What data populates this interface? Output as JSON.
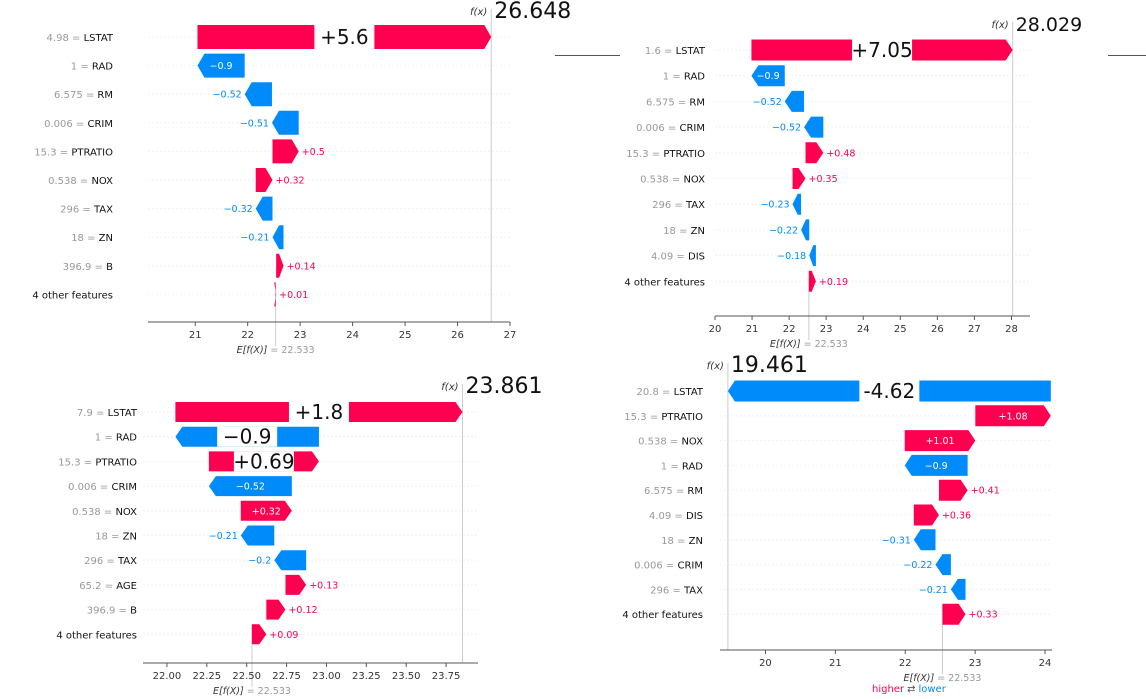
{
  "colors": {
    "positive": "#ff0051",
    "negative": "#008bfb",
    "axis": "#555555",
    "label": "#999999"
  },
  "legend": {
    "higher": "higher",
    "arrows": "⇄",
    "lower": "lower"
  },
  "chart_data": [
    {
      "type": "waterfall",
      "fx_label": "f(x)",
      "fx_value": "26.648",
      "ex_label": "E[f(X)]",
      "ex_value": "= 22.533",
      "base": 22.533,
      "xlim": [
        20.1,
        27
      ],
      "xticks": [
        21,
        22,
        23,
        24,
        25,
        26,
        27
      ],
      "features": [
        {
          "label": "4.98 = LSTAT",
          "value": 5.6,
          "text": "+5.6"
        },
        {
          "label": "1 = RAD",
          "value": -0.9,
          "text": "−0.9"
        },
        {
          "label": "6.575 = RM",
          "value": -0.52,
          "text": "−0.52"
        },
        {
          "label": "0.006 = CRIM",
          "value": -0.51,
          "text": "−0.51"
        },
        {
          "label": "15.3 = PTRATIO",
          "value": 0.5,
          "text": "+0.5"
        },
        {
          "label": "0.538 = NOX",
          "value": 0.32,
          "text": "+0.32"
        },
        {
          "label": "296 = TAX",
          "value": -0.32,
          "text": "−0.32"
        },
        {
          "label": "18 = ZN",
          "value": -0.21,
          "text": "−0.21"
        },
        {
          "label": "396.9 = B",
          "value": 0.14,
          "text": "+0.14"
        },
        {
          "label": "4 other features",
          "value": 0.01,
          "text": "+0.01"
        }
      ]
    },
    {
      "type": "waterfall",
      "fx_label": "f(x)",
      "fx_value": "28.029",
      "ex_label": "E[f(X)]",
      "ex_value": "= 22.533",
      "base": 22.533,
      "xlim": [
        20,
        28.5
      ],
      "xticks": [
        20,
        21,
        22,
        23,
        24,
        25,
        26,
        27,
        28
      ],
      "features": [
        {
          "label": "1.6 = LSTAT",
          "value": 7.05,
          "text": "+7.05"
        },
        {
          "label": "1 = RAD",
          "value": -0.9,
          "text": "−0.9"
        },
        {
          "label": "6.575 = RM",
          "value": -0.52,
          "text": "−0.52"
        },
        {
          "label": "0.006 = CRIM",
          "value": -0.52,
          "text": "−0.52"
        },
        {
          "label": "15.3 = PTRATIO",
          "value": 0.48,
          "text": "+0.48"
        },
        {
          "label": "0.538 = NOX",
          "value": 0.35,
          "text": "+0.35"
        },
        {
          "label": "296 = TAX",
          "value": -0.23,
          "text": "−0.23"
        },
        {
          "label": "18 = ZN",
          "value": -0.22,
          "text": "−0.22"
        },
        {
          "label": "4.09 = DIS",
          "value": -0.18,
          "text": "−0.18"
        },
        {
          "label": "4 other features",
          "value": 0.19,
          "text": "+0.19"
        }
      ]
    },
    {
      "type": "waterfall",
      "fx_label": "f(x)",
      "fx_value": "23.861",
      "ex_label": "E[f(X)]",
      "ex_value": "= 22.533",
      "base": 22.533,
      "xlim": [
        21.85,
        23.95
      ],
      "xticks": [
        "22.00",
        "22.25",
        "22.50",
        "22.75",
        "23.00",
        "23.25",
        "23.50",
        "23.75"
      ],
      "features": [
        {
          "label": "7.9 = LSTAT",
          "value": 1.8,
          "text": "+1.8"
        },
        {
          "label": "1 = RAD",
          "value": -0.9,
          "text": "−0.9"
        },
        {
          "label": "15.3 = PTRATIO",
          "value": 0.69,
          "text": "+0.69"
        },
        {
          "label": "0.006 = CRIM",
          "value": -0.52,
          "text": "−0.52"
        },
        {
          "label": "0.538 = NOX",
          "value": 0.32,
          "text": "+0.32"
        },
        {
          "label": "18 = ZN",
          "value": -0.21,
          "text": "−0.21"
        },
        {
          "label": "296 = TAX",
          "value": -0.2,
          "text": "−0.2"
        },
        {
          "label": "65.2 = AGE",
          "value": 0.13,
          "text": "+0.13"
        },
        {
          "label": "396.9 = B",
          "value": 0.12,
          "text": "+0.12"
        },
        {
          "label": "4 other features",
          "value": 0.09,
          "text": "+0.09"
        }
      ]
    },
    {
      "type": "waterfall",
      "fx_label": "f(x)",
      "fx_value": "19.461",
      "ex_label": "E[f(X)]",
      "ex_value": "= 22.533",
      "base": 22.533,
      "xlim": [
        19.35,
        24.1
      ],
      "xticks": [
        20,
        21,
        22,
        23,
        24
      ],
      "features": [
        {
          "label": "20.8 = LSTAT",
          "value": -4.62,
          "text": "-4.62"
        },
        {
          "label": "15.3 = PTRATIO",
          "value": 1.08,
          "text": "+1.08"
        },
        {
          "label": "0.538 = NOX",
          "value": 1.01,
          "text": "+1.01"
        },
        {
          "label": "1 = RAD",
          "value": -0.9,
          "text": "−0.9"
        },
        {
          "label": "6.575 = RM",
          "value": 0.41,
          "text": "+0.41"
        },
        {
          "label": "4.09 = DIS",
          "value": 0.36,
          "text": "+0.36"
        },
        {
          "label": "18 = ZN",
          "value": -0.31,
          "text": "−0.31"
        },
        {
          "label": "0.006 = CRIM",
          "value": -0.22,
          "text": "−0.22"
        },
        {
          "label": "296 = TAX",
          "value": -0.21,
          "text": "−0.21"
        },
        {
          "label": "4 other features",
          "value": 0.33,
          "text": "+0.33"
        }
      ]
    }
  ]
}
